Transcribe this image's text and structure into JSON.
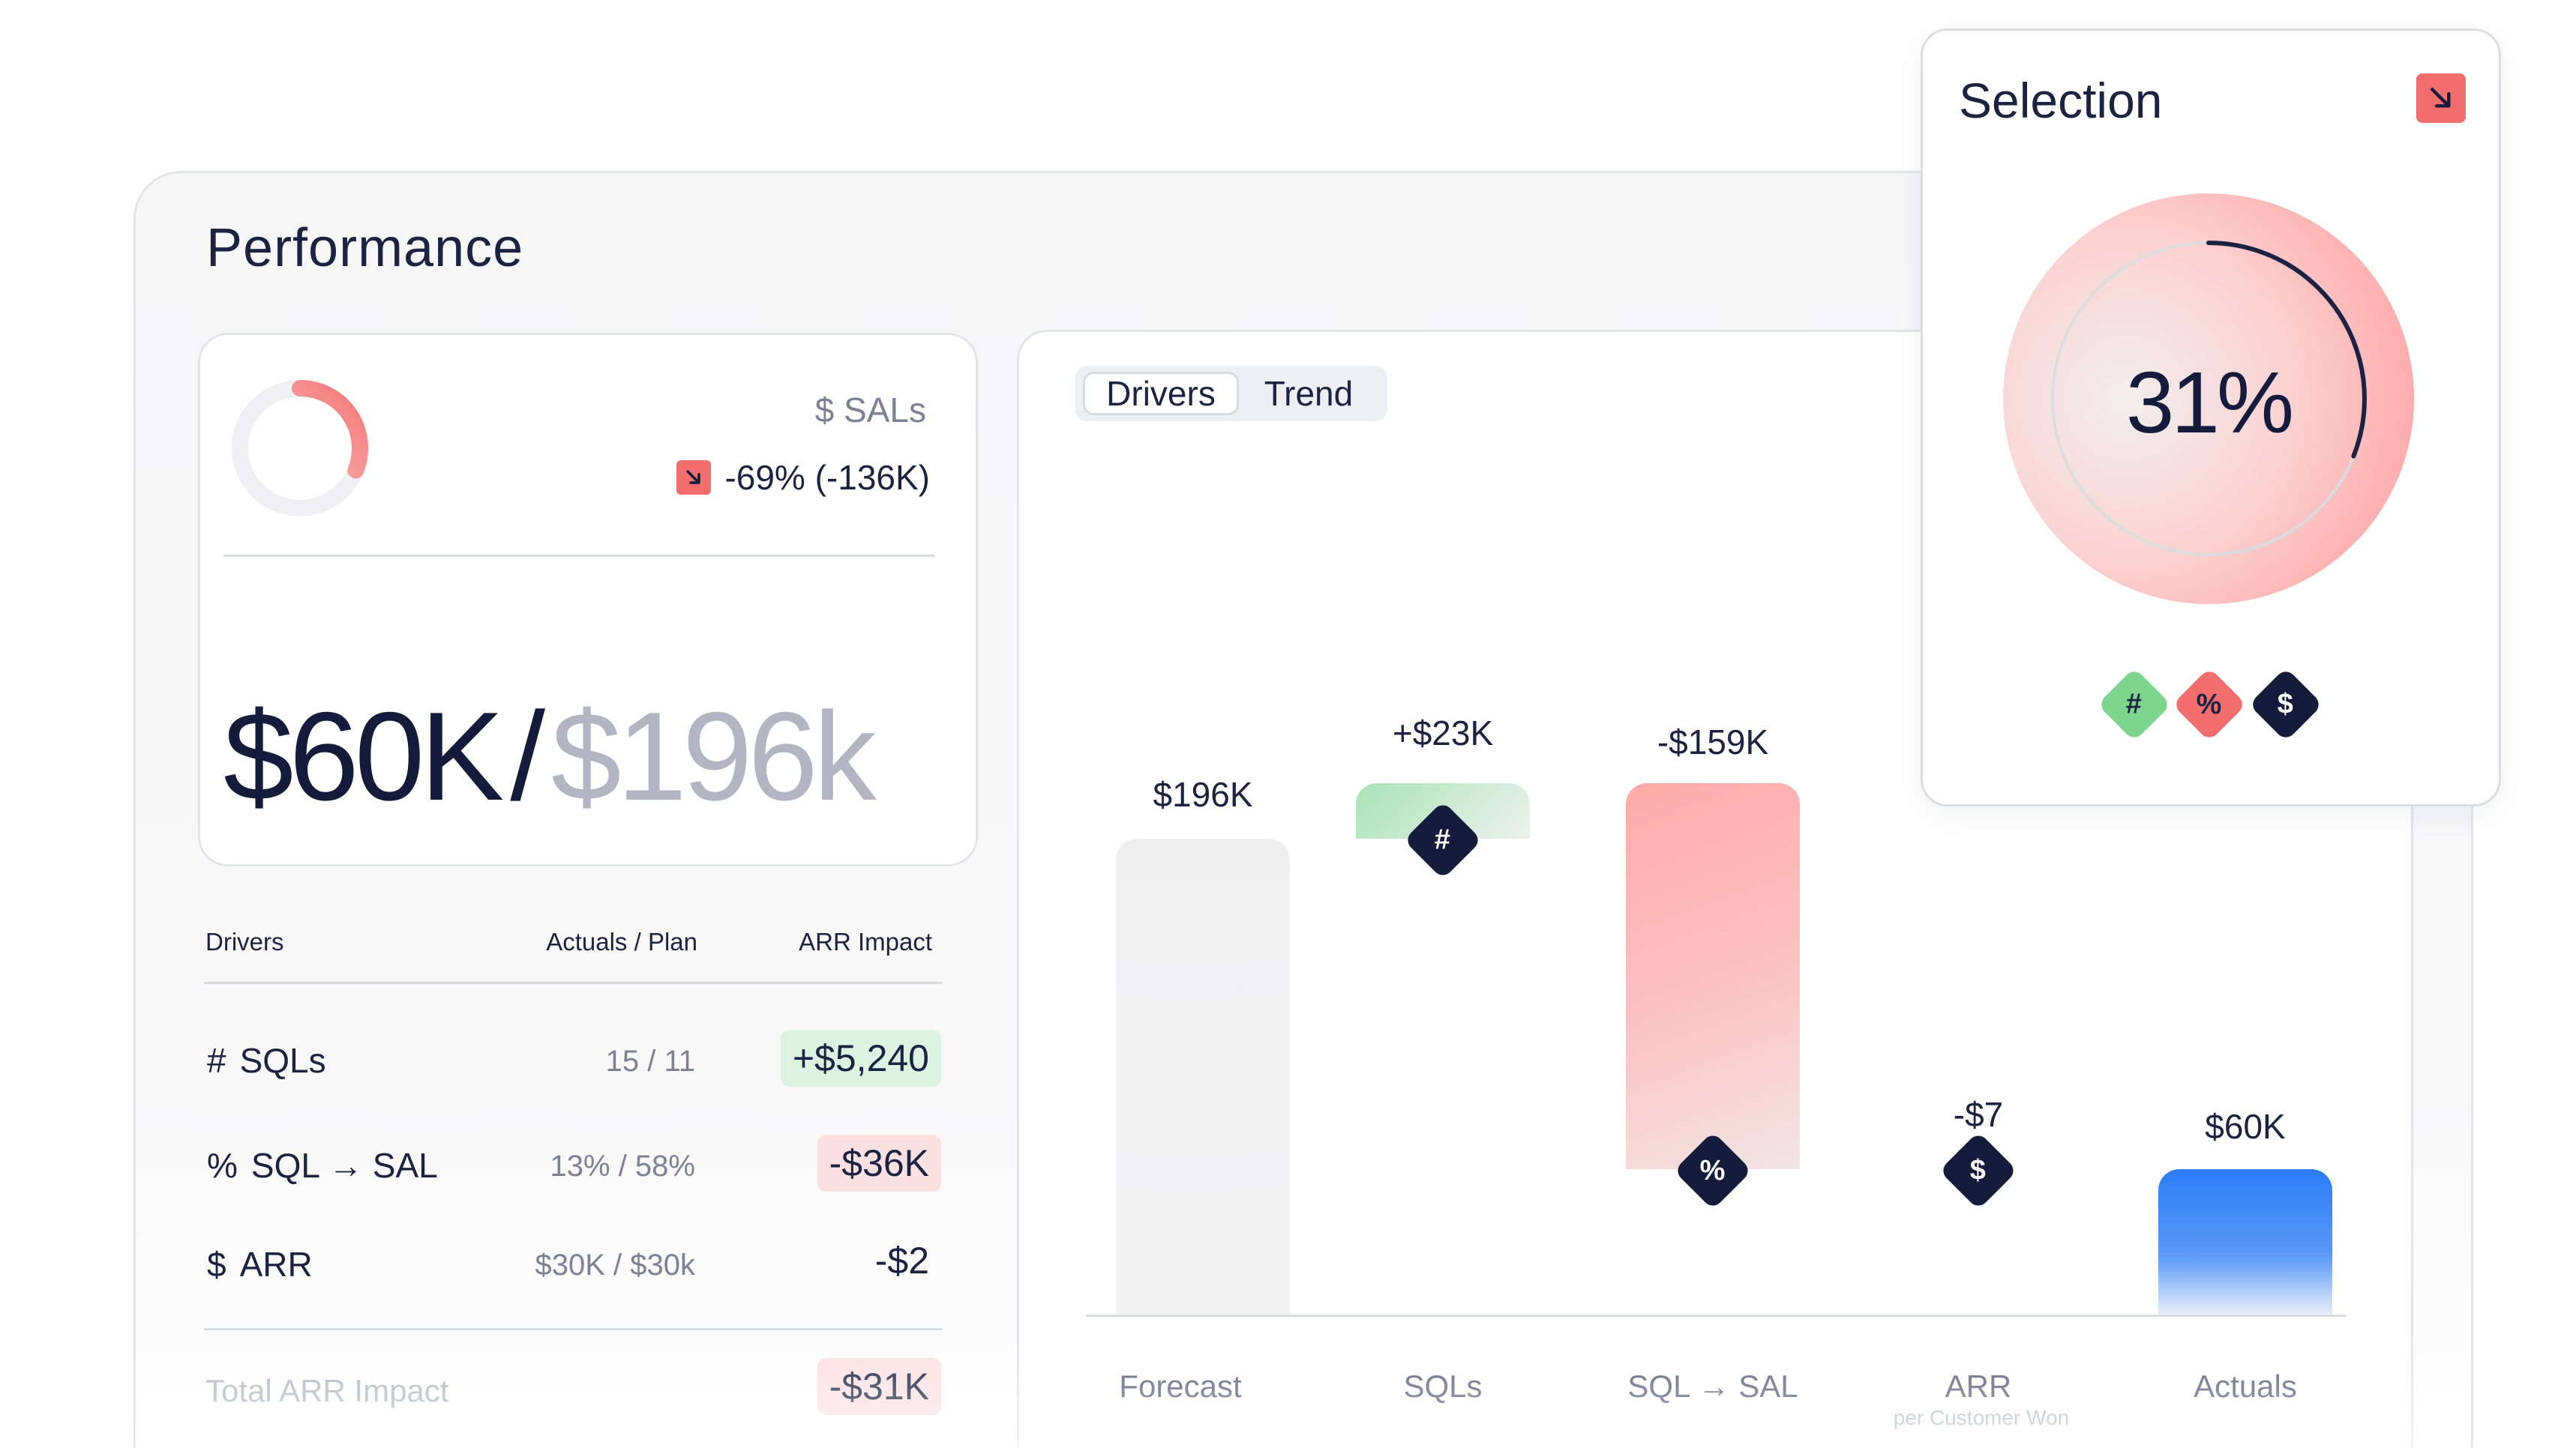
{
  "panel": {
    "title": "Performance"
  },
  "kpi": {
    "metric_label": "$ SALs",
    "delta_text": "-69% (-136K)",
    "delta_icon": "arrow-down-right-icon",
    "actual": "$60K",
    "separator": "/",
    "plan": "$196k",
    "ring_fraction": 0.31
  },
  "table": {
    "headers": {
      "drivers": "Drivers",
      "actuals_plan": "Actuals / Plan",
      "arr_impact": "ARR Impact"
    },
    "rows": [
      {
        "symbol": "#",
        "name": "SQLs",
        "actuals_plan": "15  /  11",
        "impact": "+$5,240",
        "tone": "positive"
      },
      {
        "symbol": "%",
        "name": "SQL → SAL",
        "actuals_plan": "13%  /  58%",
        "impact": "-$36K",
        "tone": "negative"
      },
      {
        "symbol": "$",
        "name": "ARR",
        "actuals_plan": "$30K  / $30k",
        "impact": "-$2",
        "tone": "neutral"
      }
    ],
    "total": {
      "label": "Total ARR Impact",
      "impact": "-$31K"
    }
  },
  "chart_tabs": {
    "items": [
      "Drivers",
      "Trend"
    ],
    "active": "Drivers"
  },
  "chart_data": {
    "type": "bar",
    "subtype": "waterfall",
    "unit": "$",
    "categories": [
      "Forecast",
      "SQLs",
      "SQL → SAL",
      "ARR",
      "Actuals"
    ],
    "category_sublabels": [
      "",
      "",
      "",
      "per Customer Won",
      ""
    ],
    "value_labels": [
      "$196K",
      "+$23K",
      "-$159K",
      "-$7",
      "$60K"
    ],
    "values": [
      196000,
      23000,
      -159000,
      -7,
      60000
    ],
    "kind": [
      "total",
      "delta",
      "delta",
      "delta",
      "total"
    ],
    "markers": [
      "",
      "#",
      "%",
      "$",
      ""
    ],
    "ylim": [
      0,
      219000
    ],
    "grid": false,
    "colors": {
      "forecast": "#efeff0",
      "increase": "#a9e3b6",
      "decrease": "#ffaaa9",
      "actuals": "#2d7cf6"
    }
  },
  "selection": {
    "title": "Selection",
    "badge_icon": "arrow-down-right-icon",
    "value": "31%",
    "fraction": 0.31,
    "chips": [
      {
        "symbol": "#",
        "color": "#7dd58e"
      },
      {
        "symbol": "%",
        "color": "#f26d6d"
      },
      {
        "symbol": "$",
        "color": "#141b3b"
      }
    ]
  }
}
